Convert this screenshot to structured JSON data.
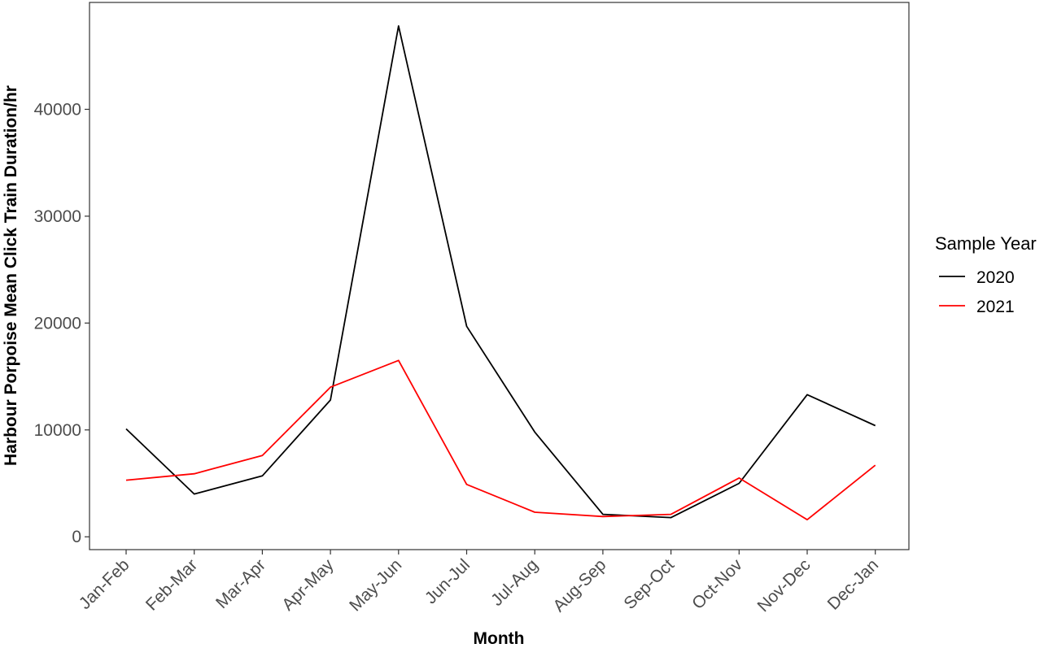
{
  "chart_data": {
    "type": "line",
    "title": "",
    "xlabel": "Month",
    "ylabel": "Harbour Porpoise Mean Click Train Duration/hr",
    "categories": [
      "Jan-Feb",
      "Feb-Mar",
      "Mar-Apr",
      "Apr-May",
      "May-Jun",
      "Jun-Jul",
      "Jul-Aug",
      "Aug-Sep",
      "Sep-Oct",
      "Oct-Nov",
      "Nov-Dec",
      "Dec-Jan"
    ],
    "yticks": [
      0,
      10000,
      20000,
      30000,
      40000
    ],
    "ytick_labels": [
      "0",
      "10000",
      "20000",
      "30000",
      "40000"
    ],
    "ylim": [
      -1200,
      50000
    ],
    "grid": false,
    "legend": {
      "title": "Sample Year",
      "placement": "right"
    },
    "series": [
      {
        "name": "2020",
        "color": "#000000",
        "values": [
          10100,
          4000,
          5700,
          12800,
          47800,
          19700,
          9800,
          2100,
          1800,
          5000,
          13300,
          10400
        ]
      },
      {
        "name": "2021",
        "color": "#ff0000",
        "values": [
          5300,
          5900,
          7600,
          14000,
          16500,
          4900,
          2300,
          1900,
          2100,
          5500,
          1600,
          6700
        ]
      }
    ]
  }
}
